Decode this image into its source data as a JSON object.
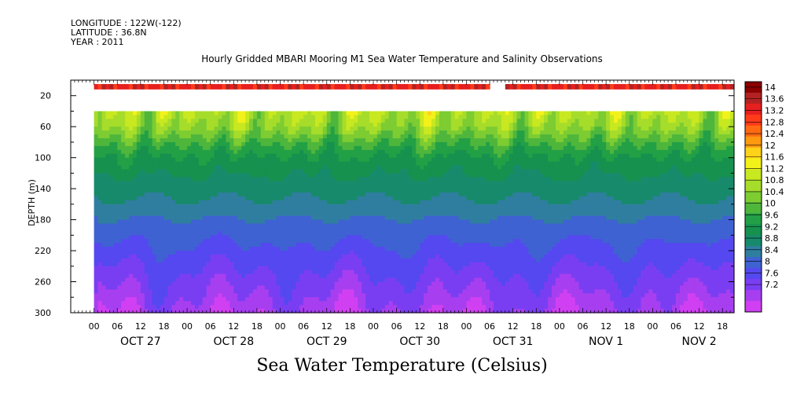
{
  "meta": {
    "longitude": "LONGITUDE : 122W(-122)",
    "latitude": "LATITUDE : 36.8N",
    "year": "YEAR : 2011"
  },
  "chart_data": {
    "type": "heatmap",
    "title": "Hourly Gridded MBARI Mooring M1 Sea Water Temperature and Salinity Observations",
    "xlabel": "Sea Water Temperature (Celsius)",
    "ylabel": "DEPTH (m)",
    "y_axis": {
      "range": [
        0,
        300
      ],
      "inverted": true,
      "ticks": [
        20,
        60,
        100,
        140,
        180,
        220,
        260,
        300
      ]
    },
    "x_axis": {
      "start_hours": -6,
      "end_hours": 165,
      "hour_ticks": [
        0,
        6,
        12,
        18
      ],
      "days": [
        "OCT 27",
        "OCT 28",
        "OCT 29",
        "OCT 30",
        "OCT 31",
        "NOV  1",
        "NOV  2"
      ]
    },
    "colorbar": {
      "levels": [
        14,
        13.6,
        13.2,
        12.8,
        12.4,
        12,
        11.6,
        11.2,
        10.8,
        10.4,
        10,
        9.6,
        9.2,
        8.8,
        8.4,
        8,
        7.6,
        7.2
      ],
      "colors": [
        "#8b0000",
        "#b22222",
        "#e61f1f",
        "#ff3b1a",
        "#ff6a12",
        "#ff9a10",
        "#ffd21a",
        "#f2f21a",
        "#c8e820",
        "#a6dc2a",
        "#7ccc32",
        "#4fb63c",
        "#23a046",
        "#16914e",
        "#188a6c",
        "#2f7ea0",
        "#3f62d2",
        "#5548f0",
        "#7a3ef2",
        "#a73ff0",
        "#d040f2"
      ]
    },
    "data_coverage": {
      "surface_depth_band": [
        5,
        12
      ],
      "surface_gap_hours": [
        102,
        106
      ],
      "deep_start_depth": 40,
      "deep_start_hours": 0
    },
    "surface_temp_c": [
      13.3,
      13.1,
      13.5,
      13.2,
      13.6,
      13.0,
      13.4,
      13.2
    ],
    "temperature_profile_c": [
      {
        "depth": 40,
        "temp": 11.1
      },
      {
        "depth": 60,
        "temp": 10.8
      },
      {
        "depth": 80,
        "temp": 10.2
      },
      {
        "depth": 100,
        "temp": 9.7
      },
      {
        "depth": 140,
        "temp": 9.2
      },
      {
        "depth": 160,
        "temp": 9.0
      },
      {
        "depth": 180,
        "temp": 8.7
      },
      {
        "depth": 220,
        "temp": 8.3
      },
      {
        "depth": 260,
        "temp": 7.9
      },
      {
        "depth": 300,
        "temp": 7.5
      }
    ]
  }
}
